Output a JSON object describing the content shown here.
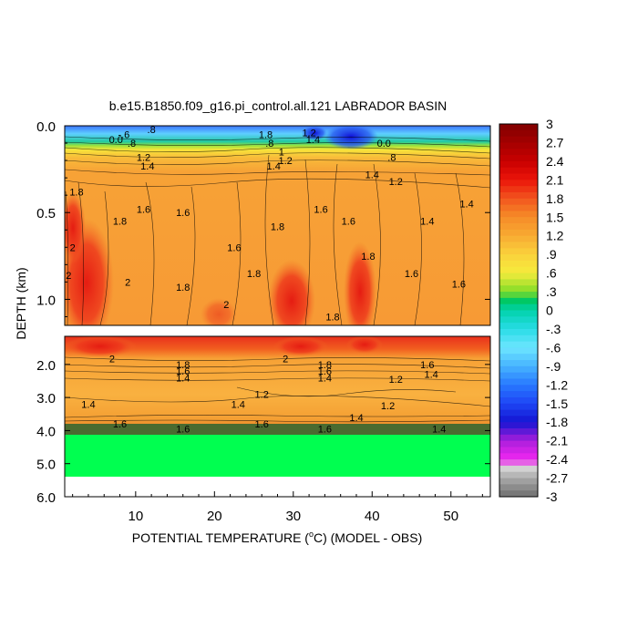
{
  "chart_data": {
    "type": "heatmap",
    "title": "b.e15.B1850.f09_g16.pi_control.all.121 LABRADOR BASIN",
    "xlabel_prefix": "POTENTIAL TEMPERATURE (",
    "xlabel_unit_sup": "o",
    "xlabel_suffix": "C) (MODEL - OBS)",
    "ylabel": "DEPTH (km)",
    "x_ticks": [
      10,
      20,
      30,
      40,
      50
    ],
    "x_range": [
      1,
      55
    ],
    "upper_panel": {
      "depth_range_km": [
        0.0,
        1.15
      ],
      "y_ticks": [
        "0.0",
        "0.5",
        "1.0"
      ],
      "y_tick_values": [
        0.0,
        0.5,
        1.0
      ]
    },
    "lower_panel": {
      "depth_range_km": [
        1.15,
        6.0
      ],
      "y_ticks": [
        "2.0",
        "3.0",
        "4.0",
        "5.0",
        "6.0"
      ],
      "y_tick_values": [
        2.0,
        3.0,
        4.0,
        5.0,
        6.0
      ]
    },
    "colorbar": {
      "labels": [
        "3",
        "2.7",
        "2.4",
        "2.1",
        "1.8",
        "1.5",
        "1.2",
        ".9",
        ".6",
        ".3",
        "0",
        "-.3",
        "-.6",
        "-.9",
        "-1.2",
        "-1.5",
        "-1.8",
        "-2.1",
        "-2.4",
        "-2.7",
        "-3"
      ],
      "range": [
        -3,
        3
      ]
    },
    "contour_labels": [
      {
        "panel": "upper",
        "x": 8.5,
        "depth": 0.05,
        "text": "-.6"
      },
      {
        "panel": "upper",
        "x": 7.5,
        "depth": 0.08,
        "text": "0.0"
      },
      {
        "panel": "upper",
        "x": 9.5,
        "depth": 0.1,
        "text": ".8"
      },
      {
        "panel": "upper",
        "x": 12,
        "depth": 0.02,
        "text": ".8"
      },
      {
        "panel": "upper",
        "x": 11,
        "depth": 0.18,
        "text": "1.2"
      },
      {
        "panel": "upper",
        "x": 11.5,
        "depth": 0.23,
        "text": "1.4"
      },
      {
        "panel": "upper",
        "x": 2.5,
        "depth": 0.38,
        "text": "1.8"
      },
      {
        "panel": "upper",
        "x": 8,
        "depth": 0.55,
        "text": "1.8"
      },
      {
        "panel": "upper",
        "x": 11,
        "depth": 0.48,
        "text": "1.6"
      },
      {
        "panel": "upper",
        "x": 2,
        "depth": 0.7,
        "text": "2"
      },
      {
        "panel": "upper",
        "x": 1.5,
        "depth": 0.86,
        "text": "2"
      },
      {
        "panel": "upper",
        "x": 9,
        "depth": 0.9,
        "text": "2"
      },
      {
        "panel": "upper",
        "x": 16,
        "depth": 0.93,
        "text": "1.8"
      },
      {
        "panel": "upper",
        "x": 16,
        "depth": 0.5,
        "text": "1.6"
      },
      {
        "panel": "upper",
        "x": 22.5,
        "depth": 0.7,
        "text": "1.6"
      },
      {
        "panel": "upper",
        "x": 25,
        "depth": 0.85,
        "text": "1.8"
      },
      {
        "panel": "upper",
        "x": 21.5,
        "depth": 1.03,
        "text": "2"
      },
      {
        "panel": "upper",
        "x": 26.5,
        "depth": 0.05,
        "text": "1.8"
      },
      {
        "panel": "upper",
        "x": 27,
        "depth": 0.1,
        "text": ".8"
      },
      {
        "panel": "upper",
        "x": 28.5,
        "depth": 0.15,
        "text": "1"
      },
      {
        "panel": "upper",
        "x": 27.5,
        "depth": 0.23,
        "text": "1.4"
      },
      {
        "panel": "upper",
        "x": 29,
        "depth": 0.2,
        "text": "1.2"
      },
      {
        "panel": "upper",
        "x": 28,
        "depth": 0.58,
        "text": "1.8"
      },
      {
        "panel": "upper",
        "x": 33.5,
        "depth": 0.48,
        "text": "1.6"
      },
      {
        "panel": "upper",
        "x": 32,
        "depth": 0.04,
        "text": "1.2"
      },
      {
        "panel": "upper",
        "x": 32.5,
        "depth": 0.08,
        "text": "1.4"
      },
      {
        "panel": "upper",
        "x": 35,
        "depth": 1.1,
        "text": "1.8"
      },
      {
        "panel": "upper",
        "x": 37,
        "depth": 0.55,
        "text": "1.6"
      },
      {
        "panel": "upper",
        "x": 40,
        "depth": 0.28,
        "text": "1.4"
      },
      {
        "panel": "upper",
        "x": 39.5,
        "depth": 0.75,
        "text": "1.8"
      },
      {
        "panel": "upper",
        "x": 43,
        "depth": 0.32,
        "text": "1.2"
      },
      {
        "panel": "upper",
        "x": 41.5,
        "depth": 0.1,
        "text": "0.0"
      },
      {
        "panel": "upper",
        "x": 42.5,
        "depth": 0.18,
        "text": ".8"
      },
      {
        "panel": "upper",
        "x": 45,
        "depth": 0.85,
        "text": "1.6"
      },
      {
        "panel": "upper",
        "x": 47,
        "depth": 0.55,
        "text": "1.4"
      },
      {
        "panel": "upper",
        "x": 51,
        "depth": 0.91,
        "text": "1.6"
      },
      {
        "panel": "upper",
        "x": 52,
        "depth": 0.45,
        "text": "1.4"
      },
      {
        "panel": "lower",
        "x": 7,
        "depth": 1.82,
        "text": "2"
      },
      {
        "panel": "lower",
        "x": 16,
        "depth": 2.0,
        "text": "1.8"
      },
      {
        "panel": "lower",
        "x": 16,
        "depth": 2.2,
        "text": "1.6"
      },
      {
        "panel": "lower",
        "x": 16,
        "depth": 2.4,
        "text": "1.4"
      },
      {
        "panel": "lower",
        "x": 29,
        "depth": 1.82,
        "text": "2"
      },
      {
        "panel": "lower",
        "x": 34,
        "depth": 2.0,
        "text": "1.8"
      },
      {
        "panel": "lower",
        "x": 34,
        "depth": 2.2,
        "text": "1.6"
      },
      {
        "panel": "lower",
        "x": 34,
        "depth": 2.4,
        "text": "1.4"
      },
      {
        "panel": "lower",
        "x": 43,
        "depth": 2.45,
        "text": "1.2"
      },
      {
        "panel": "lower",
        "x": 47,
        "depth": 2.0,
        "text": "1.6"
      },
      {
        "panel": "lower",
        "x": 47.5,
        "depth": 2.3,
        "text": "1.4"
      },
      {
        "panel": "lower",
        "x": 4,
        "depth": 3.2,
        "text": "1.4"
      },
      {
        "panel": "lower",
        "x": 23,
        "depth": 3.2,
        "text": "1.4"
      },
      {
        "panel": "lower",
        "x": 26,
        "depth": 2.9,
        "text": "1.2"
      },
      {
        "panel": "lower",
        "x": 42,
        "depth": 3.25,
        "text": "1.2"
      },
      {
        "panel": "lower",
        "x": 38,
        "depth": 3.6,
        "text": "1.4"
      },
      {
        "panel": "lower",
        "x": 8,
        "depth": 3.8,
        "text": "1.6"
      },
      {
        "panel": "lower",
        "x": 26,
        "depth": 3.8,
        "text": "1.6"
      },
      {
        "panel": "lower",
        "x": 16,
        "depth": 3.95,
        "text": "1.6"
      },
      {
        "panel": "lower",
        "x": 34,
        "depth": 3.95,
        "text": "1.6"
      },
      {
        "panel": "lower",
        "x": 48.5,
        "depth": 3.95,
        "text": "1.4"
      }
    ]
  }
}
